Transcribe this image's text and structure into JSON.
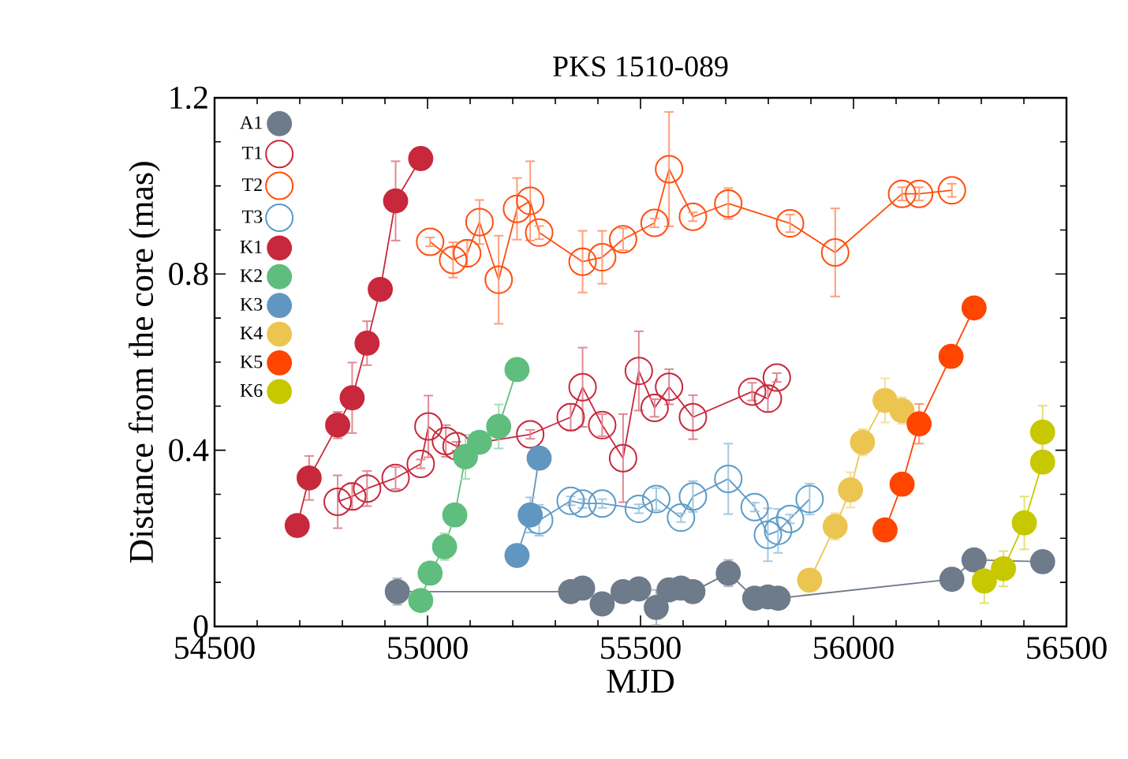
{
  "chart_data": {
    "type": "line",
    "title": "PKS 1510-089",
    "xlabel": "MJD",
    "ylabel": "Distance from the core (mas)",
    "xlim": [
      54500,
      56500
    ],
    "ylim": [
      0,
      1.2
    ],
    "xticks": [
      54500,
      55000,
      55500,
      56000,
      56500
    ],
    "yticks": [
      0,
      0.4,
      0.8,
      1.2
    ],
    "grid": false,
    "legend": "top left",
    "line_style": "solid",
    "series": [
      {
        "name": "A1",
        "color": "#6e7b8b",
        "marker": "circle",
        "x": [
          54929,
          55336,
          55364,
          55410,
          55459,
          55496,
          55537,
          55567,
          55595,
          55623,
          55706,
          55768,
          55799,
          55823,
          56231,
          56283,
          56444
        ],
        "values": [
          0.079,
          0.079,
          0.087,
          0.051,
          0.079,
          0.085,
          0.043,
          0.083,
          0.087,
          0.079,
          0.121,
          0.064,
          0.067,
          0.064,
          0.107,
          0.151,
          0.147
        ],
        "errors": [
          0.03,
          null,
          null,
          null,
          null,
          null,
          0.04,
          null,
          null,
          null,
          0.03,
          null,
          null,
          null,
          null,
          0.02,
          null
        ]
      },
      {
        "name": "T1",
        "color": "#c8283c",
        "marker": "open circle",
        "x": [
          54789,
          54823,
          54858,
          54925,
          54984,
          55002,
          55043,
          55068,
          55241,
          55336,
          55364,
          55410,
          55459,
          55496,
          55533,
          55567,
          55623,
          55762,
          55799,
          55820
        ],
        "values": [
          0.283,
          0.295,
          0.313,
          0.337,
          0.369,
          0.454,
          0.421,
          0.409,
          0.436,
          0.475,
          0.543,
          0.457,
          0.382,
          0.58,
          0.496,
          0.544,
          0.475,
          0.533,
          0.517,
          0.565
        ],
        "errors": [
          0.06,
          0.03,
          0.04,
          0.025,
          0.01,
          0.07,
          0.036,
          0.01,
          0.01,
          0.03,
          0.09,
          0.025,
          0.1,
          0.09,
          0.02,
          0.04,
          0.05,
          0.02,
          0.03,
          0.01
        ]
      },
      {
        "name": "T2",
        "color": "#ff4f0f",
        "marker": "open circle",
        "x": [
          55006,
          55060,
          55093,
          55122,
          55167,
          55210,
          55241,
          55262,
          55364,
          55410,
          55459,
          55533,
          55567,
          55623,
          55706,
          55851,
          55957,
          56114,
          56154,
          56231
        ],
        "values": [
          0.873,
          0.832,
          0.847,
          0.918,
          0.787,
          0.948,
          0.966,
          0.894,
          0.828,
          0.838,
          0.879,
          0.916,
          1.038,
          0.93,
          0.96,
          0.915,
          0.849,
          0.982,
          0.982,
          0.99
        ],
        "errors": [
          0.01,
          0.04,
          0.03,
          0.05,
          0.1,
          0.07,
          0.09,
          0.015,
          0.07,
          0.06,
          0.025,
          0.01,
          0.13,
          0.01,
          0.035,
          0.02,
          0.1,
          0.015,
          0.015,
          0.015
        ]
      },
      {
        "name": "T3",
        "color": "#5b9bc8",
        "marker": "open circle",
        "x": [
          55262,
          55336,
          55364,
          55410,
          55496,
          55537,
          55595,
          55623,
          55706,
          55768,
          55799,
          55823,
          55851,
          55897
        ],
        "values": [
          0.241,
          0.285,
          0.279,
          0.279,
          0.267,
          0.289,
          0.247,
          0.295,
          0.335,
          0.271,
          0.208,
          0.217,
          0.244,
          0.289
        ],
        "errors": [
          0.035,
          0.01,
          0.01,
          0.01,
          0.01,
          0.025,
          0.01,
          0.035,
          0.08,
          0.01,
          0.06,
          0.05,
          0.01,
          0.035
        ]
      },
      {
        "name": "K1",
        "color": "#c8283c",
        "marker": "circle",
        "x": [
          54694,
          54722,
          54789,
          54823,
          54858,
          54889,
          54925,
          54984
        ],
        "values": [
          0.229,
          0.337,
          0.457,
          0.519,
          0.643,
          0.765,
          0.966,
          1.062
        ],
        "errors": [
          null,
          0.05,
          0.03,
          0.08,
          0.05,
          null,
          0.09,
          null
        ]
      },
      {
        "name": "K2",
        "color": "#5fbe7d",
        "marker": "circle",
        "x": [
          54984,
          55006,
          55040,
          55064,
          55089,
          55122,
          55167,
          55210
        ],
        "values": [
          0.059,
          0.121,
          0.181,
          0.253,
          0.385,
          0.418,
          0.454,
          0.583
        ],
        "errors": [
          null,
          null,
          0.03,
          null,
          0.05,
          null,
          0.05,
          null
        ]
      },
      {
        "name": "K3",
        "color": "#6096c0",
        "marker": "circle",
        "x": [
          55210,
          55241,
          55262
        ],
        "values": [
          0.161,
          0.253,
          0.382
        ],
        "errors": [
          null,
          0.04,
          null
        ]
      },
      {
        "name": "K4",
        "color": "#ecc550",
        "marker": "circle",
        "x": [
          55897,
          55957,
          55993,
          56021,
          56074,
          56114
        ],
        "values": [
          0.105,
          0.227,
          0.31,
          0.418,
          0.513,
          0.49
        ],
        "errors": [
          null,
          0.03,
          0.04,
          0.03,
          0.05,
          0.03
        ]
      },
      {
        "name": "K5",
        "color": "#ff4500",
        "marker": "circle",
        "x": [
          56074,
          56114,
          56154,
          56229,
          56283
        ],
        "values": [
          0.219,
          0.323,
          0.46,
          0.613,
          0.723
        ],
        "errors": [
          null,
          null,
          0.045,
          null,
          null
        ]
      },
      {
        "name": "K6",
        "color": "#c8c800",
        "marker": "circle",
        "x": [
          56307,
          56352,
          56401,
          56444,
          56444
        ],
        "values": [
          0.103,
          0.131,
          0.235,
          0.373,
          0.441
        ],
        "errors": [
          0.05,
          0.04,
          0.06,
          null,
          0.06
        ]
      }
    ]
  }
}
